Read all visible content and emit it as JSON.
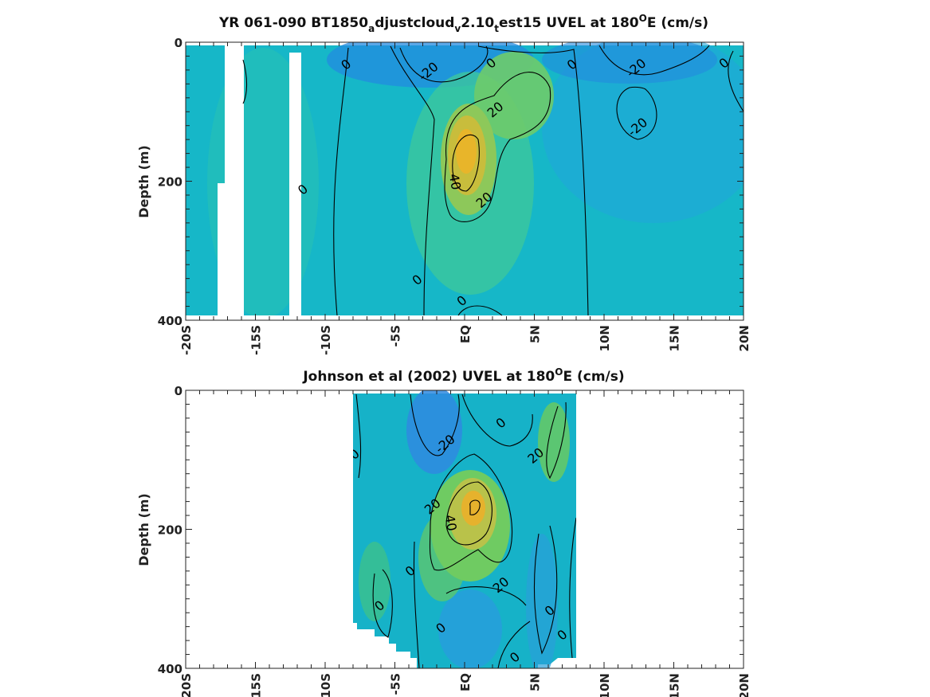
{
  "chart_data": [
    {
      "type": "heatmap",
      "title_parts": [
        "YR 061-090 BT1850",
        "a",
        "djustcloud",
        "v",
        "2.10",
        "t",
        "est15 UVEL at 180",
        "O",
        "E (cm/s)"
      ],
      "ylabel": "Depth (m)",
      "xlim": [
        -20,
        20
      ],
      "ylim": [
        0,
        400
      ],
      "y_reversed": true,
      "x_ticks": [
        -20,
        -15,
        -10,
        -5,
        0,
        5,
        10,
        15,
        20
      ],
      "x_tick_labels": [
        "-20S",
        "-15S",
        "-10S",
        "-5S",
        "EQ",
        "5N",
        "10N",
        "15N",
        "20N"
      ],
      "y_ticks": [
        0,
        200,
        400
      ],
      "y_tick_labels": [
        "0",
        "200",
        "400"
      ],
      "data_extent_x": [
        -20,
        20
      ],
      "missing_lat_bands": [
        [
          -17.3,
          -15.8
        ],
        [
          -12.3,
          -11.6
        ]
      ],
      "features": [
        {
          "kind": "core",
          "lat": 0,
          "depth": 180,
          "value": 45
        },
        {
          "kind": "lobe",
          "lat": 4.5,
          "depth": 90,
          "value": 25
        },
        {
          "kind": "westward",
          "lat": -3.5,
          "depth": 30,
          "value": -30
        },
        {
          "kind": "westward",
          "lat": 12,
          "depth": 60,
          "value": -25
        },
        {
          "kind": "westward",
          "lat": 17,
          "depth": 200,
          "value": -15
        }
      ],
      "contour_levels": [
        -20,
        0,
        20,
        40
      ],
      "contour_labels": [
        {
          "text": "0",
          "lat": -8.3,
          "depth": 30
        },
        {
          "text": "-20",
          "lat": -2.4,
          "depth": 40
        },
        {
          "text": "0",
          "lat": 2.1,
          "depth": 28
        },
        {
          "text": "0",
          "lat": 7.9,
          "depth": 30
        },
        {
          "text": "-20",
          "lat": 12.5,
          "depth": 35
        },
        {
          "text": "0",
          "lat": 18.8,
          "depth": 28
        },
        {
          "text": "20",
          "lat": 2.4,
          "depth": 95
        },
        {
          "text": "-20",
          "lat": 12.6,
          "depth": 120
        },
        {
          "text": "40",
          "lat": -1,
          "depth": 195
        },
        {
          "text": "0",
          "lat": -11.4,
          "depth": 210
        },
        {
          "text": "20",
          "lat": 1.6,
          "depth": 225
        },
        {
          "text": "0",
          "lat": -3.2,
          "depth": 340
        },
        {
          "text": "0",
          "lat": 0,
          "depth": 370
        }
      ]
    },
    {
      "type": "heatmap",
      "title_parts": [
        "Johnson et al (2002) UVEL at 180",
        "O",
        "E (cm/s)"
      ],
      "ylabel": "Depth (m)",
      "xlim": [
        -20,
        20
      ],
      "ylim": [
        0,
        400
      ],
      "y_reversed": true,
      "x_ticks": [
        -20,
        -15,
        -10,
        -5,
        0,
        5,
        10,
        15,
        20
      ],
      "x_tick_labels": [
        "-20S",
        "-15S",
        "-10S",
        "-5S",
        "EQ",
        "5N",
        "10N",
        "15N",
        "20N"
      ],
      "y_ticks": [
        0,
        200,
        400
      ],
      "y_tick_labels": [
        "0",
        "200",
        "400"
      ],
      "data_extent_x": [
        -8,
        8
      ],
      "features": [
        {
          "kind": "core",
          "lat": 1,
          "depth": 170,
          "value": 45
        },
        {
          "kind": "lobe",
          "lat": -2,
          "depth": 230,
          "value": 22
        },
        {
          "kind": "lobe",
          "lat": 6,
          "depth": 80,
          "value": 22
        },
        {
          "kind": "westward",
          "lat": -2.5,
          "depth": 50,
          "value": -30
        },
        {
          "kind": "westward",
          "lat": 0,
          "depth": 350,
          "value": -20
        },
        {
          "kind": "westward",
          "lat": 6,
          "depth": 320,
          "value": -15
        }
      ],
      "contour_levels": [
        -20,
        0,
        20,
        40
      ],
      "contour_labels": [
        {
          "text": "0",
          "lat": -7.7,
          "depth": 90
        },
        {
          "text": "-20",
          "lat": -1.2,
          "depth": 75
        },
        {
          "text": "0",
          "lat": 2.8,
          "depth": 45
        },
        {
          "text": "20",
          "lat": 5.3,
          "depth": 92
        },
        {
          "text": "20",
          "lat": -2.1,
          "depth": 165
        },
        {
          "text": "40",
          "lat": -1.3,
          "depth": 185
        },
        {
          "text": "0",
          "lat": -3.7,
          "depth": 258
        },
        {
          "text": "20",
          "lat": 2.8,
          "depth": 278
        },
        {
          "text": "0",
          "lat": -5.9,
          "depth": 308
        },
        {
          "text": "0",
          "lat": 6.3,
          "depth": 315
        },
        {
          "text": "0",
          "lat": -1.5,
          "depth": 340
        },
        {
          "text": "0",
          "lat": 7.2,
          "depth": 350
        },
        {
          "text": "0",
          "lat": 3.8,
          "depth": 382
        }
      ]
    }
  ]
}
